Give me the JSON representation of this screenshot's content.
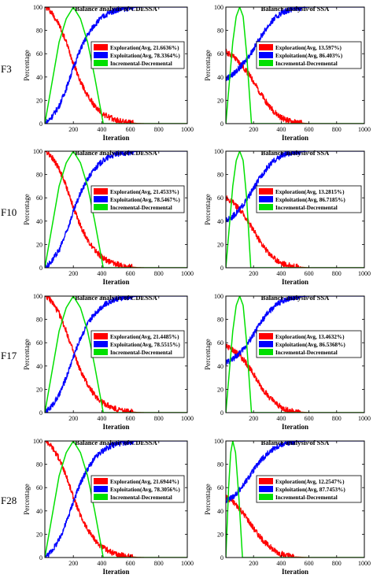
{
  "figure": {
    "row_labels": [
      "F3",
      "F10",
      "F17",
      "F28"
    ]
  },
  "chart_data": [
    {
      "type": "line",
      "function": "F3",
      "algorithm": "CDESSA",
      "title": "Balance analysis of CDESSA",
      "xlabel": "Iteration",
      "ylabel": "Percentage",
      "xlim": [
        0,
        1000
      ],
      "ylim": [
        0,
        100
      ],
      "xticks": [
        200,
        400,
        600,
        800,
        1000
      ],
      "yticks": [
        0,
        20,
        40,
        60,
        80,
        100
      ],
      "legend_position": "center-right",
      "series": [
        {
          "name": "Exploration(Avg, 21.6636%)",
          "color": "#ff0000",
          "x": [
            0,
            20,
            50,
            100,
            150,
            200,
            250,
            300,
            350,
            400,
            450,
            500,
            550,
            600,
            650,
            700,
            1000
          ],
          "y": [
            100,
            99,
            95,
            85,
            70,
            52,
            36,
            24,
            15,
            9,
            5.5,
            3,
            1.5,
            0.7,
            0.2,
            0,
            0
          ]
        },
        {
          "name": "Exploitation(Avg, 78.3364%)",
          "color": "#0000ff",
          "x": [
            0,
            20,
            50,
            100,
            150,
            200,
            250,
            300,
            350,
            400,
            450,
            500,
            550,
            600,
            650,
            700,
            1000
          ],
          "y": [
            0,
            2,
            6,
            15,
            30,
            48,
            64,
            76,
            85,
            91,
            95,
            97.5,
            98.5,
            99.3,
            99.8,
            100,
            100
          ]
        },
        {
          "name": "Incremental-Decremental",
          "color": "#00e000",
          "x": [
            0,
            100,
            150,
            200,
            250,
            300,
            350,
            410,
            1000
          ],
          "y": [
            0,
            70,
            90,
            100,
            90,
            70,
            40,
            0,
            0
          ]
        }
      ]
    },
    {
      "type": "line",
      "function": "F3",
      "algorithm": "SSA",
      "title": "Balance analysis of SSA",
      "xlabel": "Iteration",
      "ylabel": "Percentage",
      "xlim": [
        0,
        1000
      ],
      "ylim": [
        0,
        100
      ],
      "xticks": [
        200,
        400,
        600,
        800,
        1000
      ],
      "yticks": [
        0,
        20,
        40,
        60,
        80,
        100
      ],
      "legend_position": "center-right",
      "series": [
        {
          "name": "Exploration(Avg, 13.597%)",
          "color": "#ff0000",
          "x": [
            0,
            20,
            50,
            100,
            150,
            200,
            250,
            300,
            350,
            400,
            450,
            500,
            600,
            1000
          ],
          "y": [
            62,
            60,
            58,
            52,
            45,
            36,
            26,
            17,
            10,
            5,
            2.5,
            1,
            0,
            0
          ]
        },
        {
          "name": "Exploitation(Avg, 86.403%)",
          "color": "#0000ff",
          "x": [
            0,
            20,
            50,
            100,
            150,
            200,
            250,
            300,
            350,
            400,
            450,
            500,
            600,
            1000
          ],
          "y": [
            38,
            40,
            42,
            48,
            55,
            64,
            74,
            83,
            90,
            95,
            97.5,
            99,
            100,
            100
          ]
        },
        {
          "name": "Incremental-Decremental",
          "color": "#00e000",
          "x": [
            0,
            50,
            75,
            100,
            125,
            150,
            185,
            1000
          ],
          "y": [
            0,
            70,
            92,
            100,
            92,
            60,
            0,
            0
          ]
        }
      ]
    },
    {
      "type": "line",
      "function": "F10",
      "algorithm": "CDESSA",
      "title": "Balance analysis of CDESSA",
      "xlabel": "Iteration",
      "ylabel": "Percentage",
      "xlim": [
        0,
        1000
      ],
      "ylim": [
        0,
        100
      ],
      "xticks": [
        200,
        400,
        600,
        800,
        1000
      ],
      "yticks": [
        0,
        20,
        40,
        60,
        80,
        100
      ],
      "legend_position": "center-right",
      "series": [
        {
          "name": "Exploration(Avg, 21.4533%)",
          "color": "#ff0000",
          "x": [
            0,
            20,
            50,
            100,
            150,
            200,
            250,
            300,
            350,
            400,
            450,
            500,
            550,
            600,
            650,
            700,
            1000
          ],
          "y": [
            100,
            99,
            95,
            85,
            70,
            52,
            36,
            24,
            15,
            9,
            5.5,
            3,
            1.5,
            0.7,
            0.2,
            0,
            0
          ]
        },
        {
          "name": "Exploitation(Avg, 78.5467%)",
          "color": "#0000ff",
          "x": [
            0,
            20,
            50,
            100,
            150,
            200,
            250,
            300,
            350,
            400,
            450,
            500,
            550,
            600,
            650,
            700,
            1000
          ],
          "y": [
            0,
            2,
            6,
            15,
            30,
            48,
            64,
            76,
            85,
            91,
            95,
            97.5,
            98.5,
            99.3,
            99.8,
            100,
            100
          ]
        },
        {
          "name": "Incremental-Decremental",
          "color": "#00e000",
          "x": [
            0,
            100,
            150,
            200,
            250,
            300,
            350,
            410,
            1000
          ],
          "y": [
            0,
            70,
            90,
            100,
            90,
            70,
            40,
            0,
            0
          ]
        }
      ]
    },
    {
      "type": "line",
      "function": "F10",
      "algorithm": "SSA",
      "title": "Balance analysis of SSA",
      "xlabel": "Iteration",
      "ylabel": "Percentage",
      "xlim": [
        0,
        1000
      ],
      "ylim": [
        0,
        100
      ],
      "xticks": [
        200,
        400,
        600,
        800,
        1000
      ],
      "yticks": [
        0,
        20,
        40,
        60,
        80,
        100
      ],
      "legend_position": "center-right",
      "series": [
        {
          "name": "Exploration(Avg, 13.2815%)",
          "color": "#ff0000",
          "x": [
            0,
            20,
            50,
            100,
            150,
            200,
            250,
            300,
            350,
            400,
            450,
            500,
            600,
            1000
          ],
          "y": [
            60,
            58,
            56,
            50,
            42,
            32,
            22,
            14,
            8,
            4,
            2,
            0.8,
            0,
            0
          ]
        },
        {
          "name": "Exploitation(Avg, 86.7185%)",
          "color": "#0000ff",
          "x": [
            0,
            20,
            50,
            100,
            150,
            200,
            250,
            300,
            350,
            400,
            450,
            500,
            600,
            1000
          ],
          "y": [
            40,
            42,
            44,
            50,
            58,
            68,
            78,
            86,
            92,
            96,
            98,
            99.2,
            100,
            100
          ]
        },
        {
          "name": "Incremental-Decremental",
          "color": "#00e000",
          "x": [
            0,
            50,
            75,
            100,
            125,
            150,
            180,
            1000
          ],
          "y": [
            0,
            70,
            92,
            100,
            92,
            60,
            0,
            0
          ]
        }
      ]
    },
    {
      "type": "line",
      "function": "F17",
      "algorithm": "CDESSA",
      "title": "Balance analysis of CDESSA",
      "xlabel": "Iteration",
      "ylabel": "Percentage",
      "xlim": [
        0,
        1000
      ],
      "ylim": [
        0,
        100
      ],
      "xticks": [
        200,
        400,
        600,
        800,
        1000
      ],
      "yticks": [
        0,
        20,
        40,
        60,
        80,
        100
      ],
      "legend_position": "center-right",
      "series": [
        {
          "name": "Exploration(Avg, 21.4485%)",
          "color": "#ff0000",
          "x": [
            0,
            20,
            50,
            100,
            150,
            200,
            250,
            300,
            350,
            400,
            450,
            500,
            550,
            600,
            650,
            700,
            1000
          ],
          "y": [
            100,
            99,
            95,
            85,
            70,
            52,
            36,
            24,
            15,
            9,
            5.5,
            3,
            1.5,
            0.7,
            0.2,
            0,
            0
          ]
        },
        {
          "name": "Exploitation(Avg, 78.5515%)",
          "color": "#0000ff",
          "x": [
            0,
            20,
            50,
            100,
            150,
            200,
            250,
            300,
            350,
            400,
            450,
            500,
            550,
            600,
            650,
            700,
            1000
          ],
          "y": [
            0,
            2,
            6,
            15,
            30,
            48,
            64,
            76,
            85,
            91,
            95,
            97.5,
            98.5,
            99.3,
            99.8,
            100,
            100
          ]
        },
        {
          "name": "Incremental-Decremental",
          "color": "#00e000",
          "x": [
            0,
            100,
            150,
            200,
            250,
            300,
            350,
            410,
            1000
          ],
          "y": [
            0,
            70,
            90,
            100,
            90,
            70,
            40,
            0,
            0
          ]
        }
      ]
    },
    {
      "type": "line",
      "function": "F17",
      "algorithm": "SSA",
      "title": "Balance analysis of SSA",
      "xlabel": "Iteration",
      "ylabel": "Percentage",
      "xlim": [
        0,
        1000
      ],
      "ylim": [
        0,
        100
      ],
      "xticks": [
        200,
        400,
        600,
        800,
        1000
      ],
      "yticks": [
        0,
        20,
        40,
        60,
        80,
        100
      ],
      "legend_position": "center-right",
      "series": [
        {
          "name": "Exploration(Avg, 13.4632%)",
          "color": "#ff0000",
          "x": [
            0,
            20,
            50,
            100,
            150,
            200,
            250,
            300,
            350,
            400,
            450,
            500,
            600,
            1000
          ],
          "y": [
            57,
            56,
            54,
            49,
            42,
            33,
            23,
            15,
            9,
            4.5,
            2,
            0.8,
            0,
            0
          ]
        },
        {
          "name": "Exploitation(Avg, 86.5368%)",
          "color": "#0000ff",
          "x": [
            0,
            20,
            50,
            100,
            150,
            200,
            250,
            300,
            350,
            400,
            450,
            500,
            600,
            1000
          ],
          "y": [
            43,
            44,
            46,
            51,
            58,
            67,
            77,
            85,
            91,
            95.5,
            98,
            99.2,
            100,
            100
          ]
        },
        {
          "name": "Incremental-Decremental",
          "color": "#00e000",
          "x": [
            0,
            50,
            75,
            100,
            125,
            150,
            185,
            1000
          ],
          "y": [
            0,
            70,
            92,
            100,
            92,
            60,
            0,
            0
          ]
        }
      ]
    },
    {
      "type": "line",
      "function": "F28",
      "algorithm": "CDESSA",
      "title": "Balance analysis of CDESSA",
      "xlabel": "Iteration",
      "ylabel": "Percentage",
      "xlim": [
        0,
        1000
      ],
      "ylim": [
        0,
        100
      ],
      "xticks": [
        200,
        400,
        600,
        800,
        1000
      ],
      "yticks": [
        0,
        20,
        40,
        60,
        80,
        100
      ],
      "legend_position": "center-right",
      "series": [
        {
          "name": "Exploration(Avg, 21.6944%)",
          "color": "#ff0000",
          "x": [
            0,
            20,
            50,
            100,
            150,
            200,
            250,
            300,
            350,
            400,
            450,
            500,
            550,
            600,
            650,
            700,
            1000
          ],
          "y": [
            100,
            99,
            95,
            85,
            70,
            52,
            36,
            24,
            15,
            9,
            5.5,
            3,
            1.5,
            0.7,
            0.2,
            0,
            0
          ]
        },
        {
          "name": "Exploitation(Avg, 78.3056%)",
          "color": "#0000ff",
          "x": [
            0,
            20,
            50,
            100,
            150,
            200,
            250,
            300,
            350,
            400,
            450,
            500,
            550,
            600,
            650,
            700,
            1000
          ],
          "y": [
            0,
            2,
            6,
            15,
            30,
            48,
            64,
            76,
            85,
            91,
            95,
            97.5,
            98.5,
            99.3,
            99.8,
            100,
            100
          ]
        },
        {
          "name": "Incremental-Decremental",
          "color": "#00e000",
          "x": [
            0,
            100,
            150,
            200,
            250,
            300,
            350,
            410,
            1000
          ],
          "y": [
            0,
            70,
            90,
            100,
            90,
            70,
            40,
            0,
            0
          ]
        }
      ]
    },
    {
      "type": "line",
      "function": "F28",
      "algorithm": "SSA",
      "title": "Balance analysis of SSA",
      "xlabel": "Iteration",
      "ylabel": "Percentage",
      "xlim": [
        0,
        1000
      ],
      "ylim": [
        0,
        100
      ],
      "xticks": [
        200,
        400,
        600,
        800,
        1000
      ],
      "yticks": [
        0,
        20,
        40,
        60,
        80,
        100
      ],
      "legend_position": "center-right",
      "series": [
        {
          "name": "Exploration(Avg, 12.2547%)",
          "color": "#ff0000",
          "x": [
            0,
            20,
            50,
            100,
            150,
            200,
            250,
            300,
            350,
            400,
            450,
            500,
            600,
            1000
          ],
          "y": [
            52,
            50,
            48,
            42,
            34,
            25,
            17,
            11,
            6,
            3,
            1.5,
            0.5,
            0,
            0
          ]
        },
        {
          "name": "Exploitation(Avg, 87.7453%)",
          "color": "#0000ff",
          "x": [
            0,
            20,
            50,
            100,
            150,
            200,
            250,
            300,
            350,
            400,
            450,
            500,
            600,
            1000
          ],
          "y": [
            48,
            50,
            52,
            58,
            66,
            75,
            83,
            89,
            94,
            97,
            98.5,
            99.5,
            100,
            100
          ]
        },
        {
          "name": "Incremental-Decremental",
          "color": "#00e000",
          "x": [
            0,
            20,
            35,
            50,
            70,
            95,
            120,
            1000
          ],
          "y": [
            0,
            60,
            90,
            100,
            90,
            50,
            0,
            0
          ]
        }
      ]
    }
  ]
}
